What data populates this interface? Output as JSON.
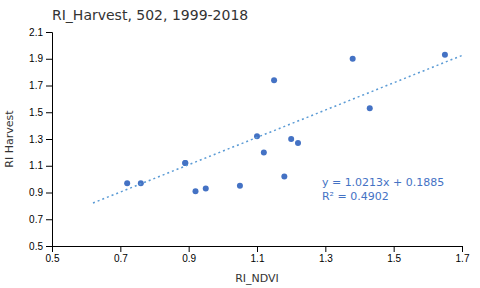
{
  "chart_data": {
    "type": "scatter",
    "title": "RI_Harvest, 502, 1999-2018",
    "x_label": "RI_NDVI",
    "y_label": "RI Harvest",
    "xlim": [
      0.5,
      1.7
    ],
    "ylim": [
      0.5,
      2.1
    ],
    "xticks": [
      0.5,
      0.7,
      0.9,
      1.1,
      1.3,
      1.5,
      1.7
    ],
    "yticks": [
      0.5,
      0.7,
      0.9,
      1.1,
      1.3,
      1.5,
      1.7,
      1.9,
      2.1
    ],
    "grid": false,
    "series": [
      {
        "type": "scatter",
        "color": "#4472C4",
        "marker": "circle",
        "x": [
          0.72,
          0.76,
          0.89,
          0.89,
          0.92,
          0.95,
          1.05,
          1.1,
          1.12,
          1.15,
          1.18,
          1.2,
          1.22,
          1.38,
          1.43,
          1.65
        ],
        "values": [
          0.97,
          0.97,
          1.12,
          1.12,
          0.91,
          0.93,
          0.95,
          1.32,
          1.2,
          1.74,
          1.02,
          1.3,
          1.27,
          1.9,
          1.53,
          1.93
        ]
      },
      {
        "type": "line",
        "color": "#5B9BD5",
        "line_style": "dotted",
        "x": [
          0.62,
          1.7
        ],
        "values": [
          0.821706,
          1.92471
        ]
      }
    ],
    "annotations": [
      {
        "x": 1.29,
        "y": 1.02,
        "lines": [
          "y = 1.0213x + 0.1885",
          "R² = 0.4902"
        ]
      }
    ]
  }
}
